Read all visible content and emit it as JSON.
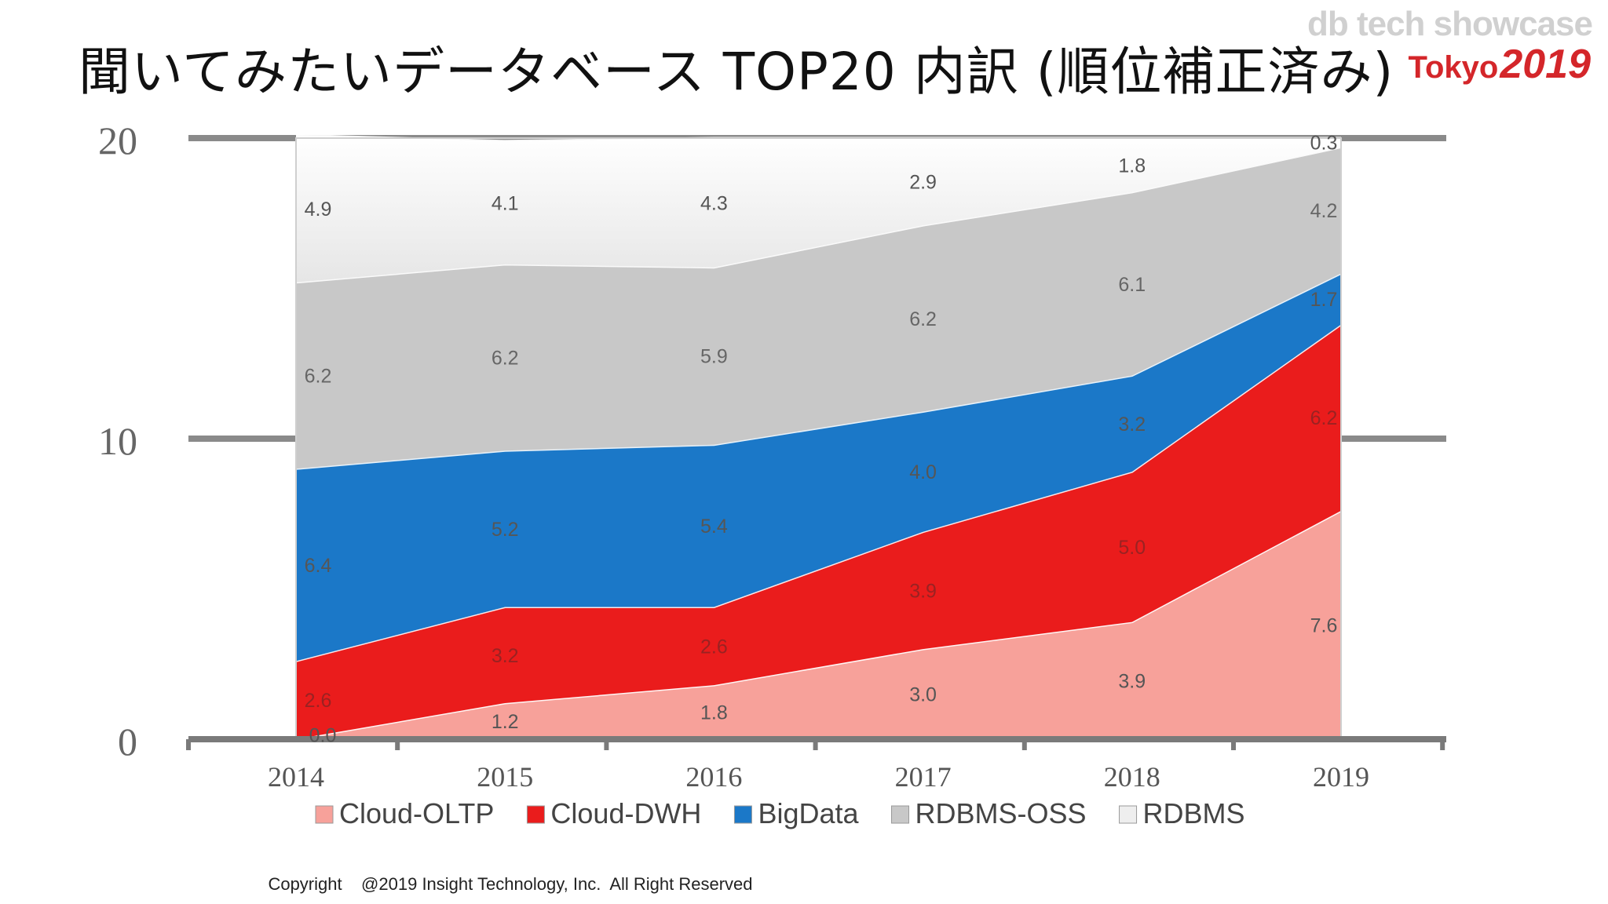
{
  "slide": {
    "title": "聞いてみたいデータベース TOP20 内訳 (順位補正済み)",
    "brand_top": "db tech showcase",
    "brand_city": "Tokyo",
    "brand_year": "2019",
    "copyright": "Copyright    @2019 Insight Technology, Inc.  All Right Reserved"
  },
  "chart_data": {
    "type": "area",
    "stacked": true,
    "categories": [
      "2014",
      "2015",
      "2016",
      "2017",
      "2018",
      "2019"
    ],
    "series": [
      {
        "name": "Cloud-OLTP",
        "color": "#f7a19a",
        "values": [
          0.0,
          1.2,
          1.8,
          3.0,
          3.9,
          7.6
        ],
        "labels": [
          "0.0",
          "1.2",
          "1.8",
          "3.0",
          "3.9",
          "7.6"
        ]
      },
      {
        "name": "Cloud-DWH",
        "color": "#ea1c1c",
        "values": [
          2.6,
          3.2,
          2.6,
          3.9,
          5.0,
          6.2
        ],
        "labels": [
          "2.6",
          "3.2",
          "2.6",
          "3.9",
          "5.0",
          "6.2"
        ]
      },
      {
        "name": "BigData",
        "color": "#1b78c8",
        "values": [
          6.4,
          5.2,
          5.4,
          4.0,
          3.2,
          1.7
        ],
        "labels": [
          "6.4",
          "5.2",
          "5.4",
          "4.0",
          "3.2",
          "1.7"
        ]
      },
      {
        "name": "RDBMS-OSS",
        "color": "#c8c8c8",
        "values": [
          6.2,
          6.2,
          5.9,
          6.2,
          6.1,
          4.2
        ],
        "labels": [
          "6.2",
          "6.2",
          "5.9",
          "6.2",
          "6.1",
          "4.2"
        ]
      },
      {
        "name": "RDBMS",
        "color": "#f2f2f2",
        "values": [
          4.9,
          4.1,
          4.3,
          2.9,
          1.8,
          0.3
        ],
        "labels": [
          "4.9",
          "4.1",
          "4.3",
          "2.9",
          "1.8",
          "0.3"
        ]
      }
    ],
    "y_ticks": [
      "0",
      "10",
      "20"
    ],
    "ylim": [
      0,
      20
    ],
    "legend_position": "bottom"
  }
}
